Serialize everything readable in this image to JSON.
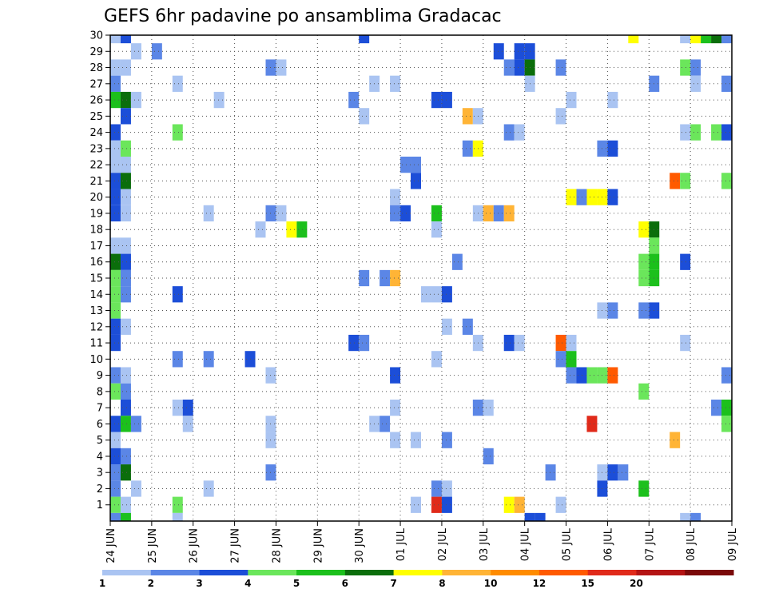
{
  "chart_data": {
    "type": "heatmap",
    "title": "GEFS 6hr padavine po ansamblima Gradacac",
    "xlabel": "",
    "ylabel": "",
    "x_tick_labels": [
      "24 JUN",
      "25 JUN",
      "26 JUN",
      "27 JUN",
      "28 JUN",
      "29 JUN",
      "30 JUN",
      "01 JUL",
      "02 JUL",
      "03 JUL",
      "04 JUL",
      "05 JUL",
      "06 JUL",
      "07 JUL",
      "08 JUL",
      "09 JUL"
    ],
    "x_range": [
      0,
      15
    ],
    "y_tick_labels": [
      "1",
      "2",
      "3",
      "4",
      "5",
      "6",
      "7",
      "8",
      "9",
      "10",
      "11",
      "12",
      "13",
      "14",
      "15",
      "16",
      "17",
      "18",
      "19",
      "20",
      "21",
      "22",
      "23",
      "24",
      "25",
      "26",
      "27",
      "28",
      "29",
      "30"
    ],
    "y_range": [
      0,
      30
    ],
    "grid": true,
    "legend_levels": [
      "1",
      "2",
      "3",
      "4",
      "5",
      "6",
      "7",
      "8",
      "10",
      "12",
      "15",
      "20"
    ],
    "legend_colors": [
      "#aac4f2",
      "#5b86e6",
      "#1c4ed8",
      "#6be65b",
      "#1cc01c",
      "#0b6e0b",
      "#ffff00",
      "#ffb436",
      "#ff8c00",
      "#ff5a00",
      "#e02a1a",
      "#b41414",
      "#7a0a0a"
    ],
    "cells": [
      [
        30,
        0.0,
        0
      ],
      [
        30,
        0.25,
        2
      ],
      [
        30,
        6.0,
        2
      ],
      [
        30,
        12.5,
        6
      ],
      [
        30,
        13.75,
        0
      ],
      [
        30,
        14.0,
        6
      ],
      [
        30,
        14.25,
        4
      ],
      [
        30,
        14.5,
        5
      ],
      [
        30,
        14.75,
        1
      ],
      [
        29,
        0.5,
        0
      ],
      [
        29,
        1.0,
        1
      ],
      [
        29,
        9.25,
        2
      ],
      [
        29,
        9.75,
        2
      ],
      [
        29,
        10.0,
        2
      ],
      [
        28,
        0.0,
        0
      ],
      [
        28,
        0.25,
        0
      ],
      [
        28,
        3.75,
        1
      ],
      [
        28,
        4.0,
        0
      ],
      [
        28,
        9.5,
        1
      ],
      [
        28,
        9.75,
        2
      ],
      [
        28,
        10.0,
        5
      ],
      [
        28,
        10.75,
        1
      ],
      [
        28,
        13.75,
        3
      ],
      [
        28,
        14.0,
        1
      ],
      [
        27,
        0.0,
        1
      ],
      [
        27,
        1.5,
        0
      ],
      [
        27,
        6.25,
        0
      ],
      [
        27,
        6.75,
        0
      ],
      [
        27,
        10.0,
        0
      ],
      [
        27,
        13.0,
        1
      ],
      [
        27,
        14.0,
        0
      ],
      [
        27,
        14.75,
        1
      ],
      [
        26,
        0.0,
        4
      ],
      [
        26,
        0.25,
        5
      ],
      [
        26,
        0.5,
        0
      ],
      [
        26,
        2.5,
        0
      ],
      [
        26,
        5.75,
        1
      ],
      [
        26,
        7.75,
        2
      ],
      [
        26,
        8.0,
        2
      ],
      [
        26,
        11.0,
        0
      ],
      [
        26,
        12.0,
        0
      ],
      [
        25,
        0.25,
        2
      ],
      [
        25,
        6.0,
        0
      ],
      [
        25,
        8.5,
        7
      ],
      [
        25,
        8.75,
        0
      ],
      [
        25,
        10.75,
        0
      ],
      [
        24,
        0.0,
        2
      ],
      [
        24,
        1.5,
        3
      ],
      [
        24,
        9.5,
        1
      ],
      [
        24,
        9.75,
        0
      ],
      [
        24,
        13.75,
        0
      ],
      [
        24,
        14.0,
        3
      ],
      [
        24,
        14.5,
        3
      ],
      [
        24,
        14.75,
        2
      ],
      [
        23,
        0.0,
        0
      ],
      [
        23,
        0.25,
        3
      ],
      [
        23,
        8.5,
        1
      ],
      [
        23,
        8.75,
        6
      ],
      [
        23,
        11.75,
        1
      ],
      [
        23,
        12.0,
        2
      ],
      [
        22,
        0.0,
        0
      ],
      [
        22,
        0.25,
        0
      ],
      [
        22,
        7.0,
        1
      ],
      [
        22,
        7.25,
        1
      ],
      [
        21,
        0.0,
        2
      ],
      [
        21,
        0.25,
        5
      ],
      [
        21,
        7.25,
        2
      ],
      [
        21,
        13.5,
        9
      ],
      [
        21,
        13.75,
        3
      ],
      [
        21,
        14.75,
        3
      ],
      [
        20,
        0.0,
        2
      ],
      [
        20,
        0.25,
        0
      ],
      [
        20,
        6.75,
        0
      ],
      [
        20,
        11.0,
        6
      ],
      [
        20,
        11.25,
        1
      ],
      [
        20,
        11.5,
        6
      ],
      [
        20,
        11.75,
        6
      ],
      [
        20,
        12.0,
        2
      ],
      [
        19,
        0.0,
        2
      ],
      [
        19,
        0.25,
        0
      ],
      [
        19,
        2.25,
        0
      ],
      [
        19,
        3.75,
        1
      ],
      [
        19,
        4.0,
        0
      ],
      [
        19,
        6.75,
        1
      ],
      [
        19,
        7.0,
        2
      ],
      [
        19,
        7.75,
        4
      ],
      [
        19,
        8.75,
        0
      ],
      [
        19,
        9.0,
        7
      ],
      [
        19,
        9.25,
        1
      ],
      [
        19,
        9.5,
        7
      ],
      [
        18,
        3.5,
        0
      ],
      [
        18,
        4.25,
        6
      ],
      [
        18,
        4.5,
        4
      ],
      [
        18,
        7.75,
        0
      ],
      [
        18,
        12.75,
        6
      ],
      [
        18,
        13.0,
        5
      ],
      [
        17,
        0.0,
        0
      ],
      [
        17,
        0.25,
        0
      ],
      [
        17,
        13.0,
        3
      ],
      [
        16,
        0.0,
        5
      ],
      [
        16,
        0.25,
        2
      ],
      [
        16,
        8.25,
        1
      ],
      [
        16,
        12.75,
        3
      ],
      [
        16,
        13.0,
        4
      ],
      [
        16,
        13.75,
        2
      ],
      [
        15,
        0.0,
        3
      ],
      [
        15,
        0.25,
        1
      ],
      [
        15,
        6.0,
        1
      ],
      [
        15,
        6.5,
        1
      ],
      [
        15,
        6.75,
        7
      ],
      [
        15,
        12.75,
        3
      ],
      [
        15,
        13.0,
        4
      ],
      [
        14,
        0.0,
        3
      ],
      [
        14,
        0.25,
        1
      ],
      [
        14,
        1.5,
        2
      ],
      [
        14,
        7.5,
        0
      ],
      [
        14,
        7.75,
        0
      ],
      [
        14,
        8.0,
        2
      ],
      [
        13,
        0.0,
        3
      ],
      [
        13,
        11.75,
        0
      ],
      [
        13,
        12.0,
        1
      ],
      [
        13,
        12.75,
        1
      ],
      [
        13,
        13.0,
        2
      ],
      [
        12,
        0.0,
        2
      ],
      [
        12,
        0.25,
        0
      ],
      [
        12,
        8.0,
        0
      ],
      [
        12,
        8.5,
        1
      ],
      [
        11,
        0.0,
        2
      ],
      [
        11,
        5.75,
        2
      ],
      [
        11,
        6.0,
        1
      ],
      [
        11,
        8.75,
        0
      ],
      [
        11,
        9.5,
        2
      ],
      [
        11,
        9.75,
        0
      ],
      [
        11,
        10.75,
        9
      ],
      [
        11,
        11.0,
        0
      ],
      [
        11,
        13.75,
        0
      ],
      [
        10,
        1.5,
        1
      ],
      [
        10,
        2.25,
        1
      ],
      [
        10,
        3.25,
        2
      ],
      [
        10,
        7.75,
        0
      ],
      [
        10,
        10.75,
        1
      ],
      [
        10,
        11.0,
        4
      ],
      [
        9,
        0.0,
        1
      ],
      [
        9,
        0.25,
        0
      ],
      [
        9,
        3.75,
        0
      ],
      [
        9,
        6.75,
        2
      ],
      [
        9,
        11.0,
        1
      ],
      [
        9,
        11.25,
        2
      ],
      [
        9,
        11.5,
        3
      ],
      [
        9,
        11.75,
        3
      ],
      [
        9,
        12.0,
        9
      ],
      [
        9,
        14.75,
        1
      ],
      [
        8,
        0.0,
        3
      ],
      [
        8,
        0.25,
        1
      ],
      [
        8,
        12.75,
        3
      ],
      [
        7,
        0.25,
        2
      ],
      [
        7,
        1.5,
        0
      ],
      [
        7,
        1.75,
        2
      ],
      [
        7,
        6.75,
        0
      ],
      [
        7,
        8.75,
        1
      ],
      [
        7,
        9.0,
        0
      ],
      [
        7,
        14.5,
        1
      ],
      [
        7,
        14.75,
        4
      ],
      [
        6,
        0.0,
        2
      ],
      [
        6,
        0.25,
        4
      ],
      [
        6,
        0.5,
        1
      ],
      [
        6,
        1.75,
        0
      ],
      [
        6,
        3.75,
        0
      ],
      [
        6,
        6.25,
        0
      ],
      [
        6,
        6.5,
        1
      ],
      [
        6,
        11.5,
        10
      ],
      [
        6,
        14.75,
        3
      ],
      [
        5,
        0.0,
        0
      ],
      [
        5,
        3.75,
        0
      ],
      [
        5,
        6.75,
        0
      ],
      [
        5,
        7.25,
        0
      ],
      [
        5,
        8.0,
        1
      ],
      [
        5,
        13.5,
        7
      ],
      [
        4,
        0.0,
        2
      ],
      [
        4,
        0.25,
        1
      ],
      [
        4,
        9.0,
        1
      ],
      [
        3,
        0.0,
        1
      ],
      [
        3,
        0.25,
        5
      ],
      [
        3,
        3.75,
        1
      ],
      [
        3,
        10.5,
        1
      ],
      [
        3,
        11.75,
        0
      ],
      [
        3,
        12.0,
        2
      ],
      [
        3,
        12.25,
        1
      ],
      [
        2,
        0.0,
        1
      ],
      [
        2,
        0.5,
        0
      ],
      [
        2,
        2.25,
        0
      ],
      [
        2,
        7.75,
        1
      ],
      [
        2,
        8.0,
        0
      ],
      [
        2,
        11.75,
        2
      ],
      [
        2,
        12.75,
        4
      ],
      [
        1,
        0.0,
        3
      ],
      [
        1,
        0.25,
        0
      ],
      [
        1,
        1.5,
        3
      ],
      [
        1,
        7.25,
        0
      ],
      [
        1,
        7.75,
        10
      ],
      [
        1,
        8.0,
        2
      ],
      [
        1,
        9.5,
        6
      ],
      [
        1,
        9.75,
        7
      ],
      [
        1,
        10.75,
        0
      ],
      [
        0,
        0.0,
        1
      ],
      [
        0,
        0.25,
        4
      ],
      [
        0,
        1.5,
        0
      ],
      [
        0,
        10.0,
        2
      ],
      [
        0,
        10.25,
        2
      ],
      [
        0,
        13.75,
        0
      ],
      [
        0,
        14.0,
        1
      ]
    ]
  }
}
